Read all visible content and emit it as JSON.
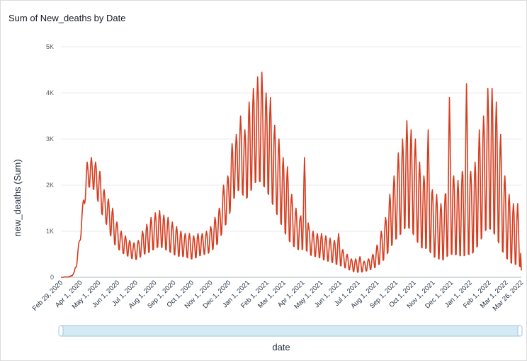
{
  "header": {
    "title": "Sum of New_deaths by Date"
  },
  "colors": {
    "line": "#d63d1f",
    "grid": "#e9ebed",
    "scrollbar_fill": "#d6eaf5",
    "scrollbar_border": "#9fc6dd"
  },
  "chart_data": {
    "type": "line",
    "title": "Sum of New_deaths by Date",
    "xlabel": "date",
    "ylabel": "new_deaths (Sum)",
    "x_start": "2020-02-29",
    "x_end": "2022-03-26",
    "ylim": [
      0,
      5000
    ],
    "y_ticks": [
      0,
      1000,
      2000,
      3000,
      4000,
      5000
    ],
    "y_tick_labels": [
      "0",
      "1K",
      "2K",
      "3K",
      "4K",
      "5K"
    ],
    "x_tick_labels": [
      "Feb 29, 2020",
      "Apr 1, 2020",
      "May 1, 2020",
      "Jun 1, 2020",
      "Jul 1, 2020",
      "Aug 1, 2020",
      "Sep 1, 2020",
      "Oct 1, 2020",
      "Nov 1, 2020",
      "Dec 1, 2020",
      "Jan 1, 2021",
      "Feb 1, 2021",
      "Mar 1, 2021",
      "Apr 1, 2021",
      "May 1, 2021",
      "Jun 1, 2021",
      "Jul 1, 2021",
      "Aug 1, 2021",
      "Sep 1, 2021",
      "Oct 1, 2021",
      "Nov 1, 2021",
      "Dec 1, 2021",
      "Jan 1, 2022",
      "Feb 1, 2022",
      "Mar 1, 2022",
      "Mar 26, 2022"
    ],
    "x_tick_dates": [
      "2020-02-29",
      "2020-04-01",
      "2020-05-01",
      "2020-06-01",
      "2020-07-01",
      "2020-08-01",
      "2020-09-01",
      "2020-10-01",
      "2020-11-01",
      "2020-12-01",
      "2021-01-01",
      "2021-02-01",
      "2021-03-01",
      "2021-04-01",
      "2021-05-01",
      "2021-06-01",
      "2021-07-01",
      "2021-08-01",
      "2021-09-01",
      "2021-10-01",
      "2021-11-01",
      "2021-12-01",
      "2022-01-01",
      "2022-02-01",
      "2022-03-01",
      "2022-03-26"
    ],
    "grid": true,
    "legend": "none",
    "series": [
      {
        "peaks": [
          [
            "2020-02-29",
            0,
            0
          ],
          [
            "2020-03-15",
            20,
            5
          ],
          [
            "2020-03-22",
            120,
            60
          ],
          [
            "2020-03-29",
            700,
            400
          ],
          [
            "2020-04-05",
            1600,
            1300
          ],
          [
            "2020-04-12",
            2500,
            1900
          ],
          [
            "2020-04-19",
            2600,
            1900
          ],
          [
            "2020-04-26",
            2500,
            1800
          ],
          [
            "2020-05-03",
            2300,
            1400
          ],
          [
            "2020-05-10",
            1900,
            1200
          ],
          [
            "2020-05-17",
            1700,
            1000
          ],
          [
            "2020-05-24",
            1500,
            700
          ],
          [
            "2020-05-31",
            1200,
            600
          ],
          [
            "2020-06-07",
            1000,
            500
          ],
          [
            "2020-06-14",
            900,
            450
          ],
          [
            "2020-06-21",
            800,
            400
          ],
          [
            "2020-06-28",
            750,
            350
          ],
          [
            "2020-07-05",
            800,
            350
          ],
          [
            "2020-07-12",
            1000,
            450
          ],
          [
            "2020-07-19",
            1150,
            450
          ],
          [
            "2020-07-26",
            1300,
            500
          ],
          [
            "2020-08-02",
            1400,
            550
          ],
          [
            "2020-08-09",
            1450,
            600
          ],
          [
            "2020-08-16",
            1350,
            550
          ],
          [
            "2020-08-23",
            1300,
            500
          ],
          [
            "2020-08-30",
            1200,
            450
          ],
          [
            "2020-09-06",
            1100,
            400
          ],
          [
            "2020-09-13",
            1000,
            400
          ],
          [
            "2020-09-20",
            950,
            400
          ],
          [
            "2020-09-27",
            950,
            350
          ],
          [
            "2020-10-04",
            900,
            350
          ],
          [
            "2020-10-11",
            950,
            400
          ],
          [
            "2020-10-18",
            950,
            450
          ],
          [
            "2020-10-25",
            1000,
            450
          ],
          [
            "2020-11-01",
            1100,
            500
          ],
          [
            "2020-11-08",
            1300,
            600
          ],
          [
            "2020-11-15",
            1500,
            700
          ],
          [
            "2020-11-22",
            2000,
            1000
          ],
          [
            "2020-11-29",
            2200,
            1100
          ],
          [
            "2020-12-06",
            2900,
            1500
          ],
          [
            "2020-12-13",
            3100,
            1700
          ],
          [
            "2020-12-20",
            3500,
            1800
          ],
          [
            "2020-12-27",
            3200,
            1500
          ],
          [
            "2021-01-03",
            3800,
            1600
          ],
          [
            "2021-01-10",
            4100,
            1800
          ],
          [
            "2021-01-17",
            4350,
            1900
          ],
          [
            "2021-01-24",
            4450,
            1800
          ],
          [
            "2021-01-31",
            4000,
            1700
          ],
          [
            "2021-02-07",
            3900,
            1500
          ],
          [
            "2021-02-14",
            3300,
            1300
          ],
          [
            "2021-02-21",
            3000,
            1100
          ],
          [
            "2021-02-28",
            2600,
            900
          ],
          [
            "2021-03-07",
            2400,
            700
          ],
          [
            "2021-03-14",
            1800,
            600
          ],
          [
            "2021-03-21",
            1500,
            550
          ],
          [
            "2021-03-28",
            1300,
            500
          ],
          [
            "2021-04-04",
            2600,
            450
          ],
          [
            "2021-04-11",
            1100,
            450
          ],
          [
            "2021-04-18",
            1000,
            400
          ],
          [
            "2021-04-25",
            950,
            400
          ],
          [
            "2021-05-02",
            950,
            350
          ],
          [
            "2021-05-09",
            900,
            300
          ],
          [
            "2021-05-16",
            850,
            300
          ],
          [
            "2021-05-23",
            800,
            250
          ],
          [
            "2021-05-30",
            950,
            200
          ],
          [
            "2021-06-06",
            600,
            200
          ],
          [
            "2021-06-13",
            500,
            150
          ],
          [
            "2021-06-20",
            400,
            120
          ],
          [
            "2021-06-27",
            400,
            80
          ],
          [
            "2021-07-04",
            450,
            80
          ],
          [
            "2021-07-11",
            350,
            100
          ],
          [
            "2021-07-18",
            400,
            130
          ],
          [
            "2021-07-25",
            500,
            150
          ],
          [
            "2021-08-01",
            700,
            200
          ],
          [
            "2021-08-08",
            1000,
            250
          ],
          [
            "2021-08-15",
            1300,
            350
          ],
          [
            "2021-08-22",
            1800,
            500
          ],
          [
            "2021-08-29",
            2200,
            650
          ],
          [
            "2021-09-05",
            2700,
            700
          ],
          [
            "2021-09-12",
            3000,
            800
          ],
          [
            "2021-09-19",
            3400,
            900
          ],
          [
            "2021-09-26",
            3200,
            800
          ],
          [
            "2021-10-03",
            3000,
            650
          ],
          [
            "2021-10-10",
            2500,
            500
          ],
          [
            "2021-10-17",
            2200,
            450
          ],
          [
            "2021-10-24",
            3200,
            400
          ],
          [
            "2021-10-31",
            1900,
            300
          ],
          [
            "2021-11-07",
            1800,
            300
          ],
          [
            "2021-11-14",
            1600,
            250
          ],
          [
            "2021-11-21",
            1800,
            250
          ],
          [
            "2021-11-28",
            3900,
            200
          ],
          [
            "2021-12-05",
            2200,
            300
          ],
          [
            "2021-12-12",
            2100,
            350
          ],
          [
            "2021-12-19",
            2300,
            250
          ],
          [
            "2021-12-26",
            4200,
            150
          ],
          [
            "2022-01-02",
            2300,
            300
          ],
          [
            "2022-01-09",
            2500,
            400
          ],
          [
            "2022-01-16",
            3200,
            500
          ],
          [
            "2022-01-23",
            3500,
            700
          ],
          [
            "2022-01-30",
            4100,
            800
          ],
          [
            "2022-02-06",
            4100,
            700
          ],
          [
            "2022-02-13",
            3800,
            600
          ],
          [
            "2022-02-20",
            3100,
            400
          ],
          [
            "2022-02-27",
            2200,
            300
          ],
          [
            "2022-03-06",
            1800,
            200
          ],
          [
            "2022-03-13",
            1600,
            150
          ],
          [
            "2022-03-20",
            1600,
            150
          ],
          [
            "2022-03-26",
            800,
            150
          ]
        ]
      }
    ]
  }
}
